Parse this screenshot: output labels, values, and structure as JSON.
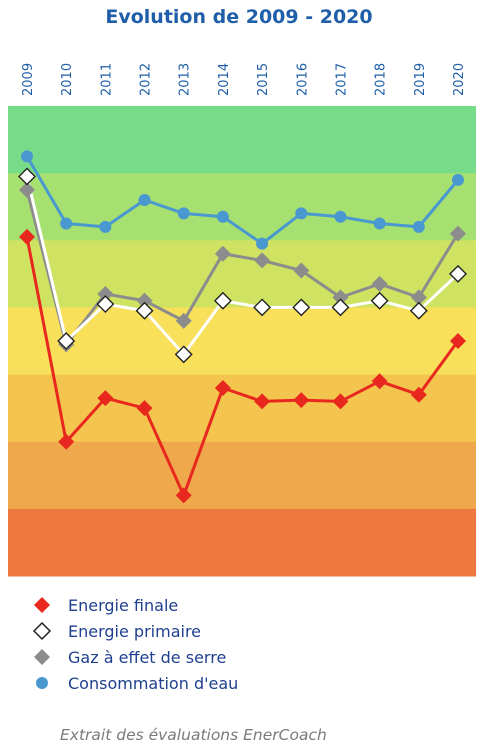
{
  "page": {
    "footer": "Extrait des évaluations EnerCoach"
  },
  "chart_data": {
    "type": "line",
    "title": "Evolution de 2009 - 2020",
    "x": [
      "2009",
      "2010",
      "2011",
      "2012",
      "2013",
      "2014",
      "2015",
      "2016",
      "2017",
      "2018",
      "2019",
      "2020"
    ],
    "y_scale": "EnerCoach classes A (top) to G (bottom), values in class units",
    "ylim": [
      0,
      7
    ],
    "grid": false,
    "legend_position": "bottom",
    "bands": [
      {
        "color": "#76dc8a"
      },
      {
        "color": "#a5e070"
      },
      {
        "color": "#cfe262"
      },
      {
        "color": "#f8e05a"
      },
      {
        "color": "#f4c54e"
      },
      {
        "color": "#f0a84c"
      },
      {
        "color": "#ed7840"
      }
    ],
    "series": [
      {
        "name": "Energie finale",
        "color": "#e8281e",
        "line": "#e8281e",
        "marker": "diamond",
        "fill": "#e8281e",
        "stroke": "#e8281e",
        "values": [
          1.95,
          5.0,
          4.35,
          4.5,
          5.8,
          4.2,
          4.4,
          4.38,
          4.4,
          4.1,
          4.3,
          3.5
        ]
      },
      {
        "name": "Energie primaire",
        "color": "#ffffff",
        "line": "#ffffff",
        "marker": "diamond",
        "fill": "#ffffff",
        "stroke": "#222222",
        "values": [
          1.05,
          3.5,
          2.95,
          3.05,
          3.7,
          2.9,
          3.0,
          3.0,
          3.0,
          2.9,
          3.05,
          2.5
        ]
      },
      {
        "name": "Gaz à effet de serre",
        "color": "#8c8c8c",
        "line": "#8c8c8c",
        "marker": "diamond",
        "fill": "#8c8c8c",
        "stroke": "#8c8c8c",
        "values": [
          1.25,
          3.55,
          2.8,
          2.9,
          3.2,
          2.2,
          2.3,
          2.45,
          2.85,
          2.65,
          2.85,
          1.9
        ]
      },
      {
        "name": "Consommation d'eau",
        "color": "#4a98d0",
        "line": "#4a98d0",
        "marker": "circle",
        "fill": "#4a98d0",
        "stroke": "#4a98d0",
        "values": [
          0.75,
          1.75,
          1.8,
          1.4,
          1.6,
          1.65,
          2.05,
          1.6,
          1.65,
          1.75,
          1.8,
          1.1
        ]
      }
    ]
  }
}
